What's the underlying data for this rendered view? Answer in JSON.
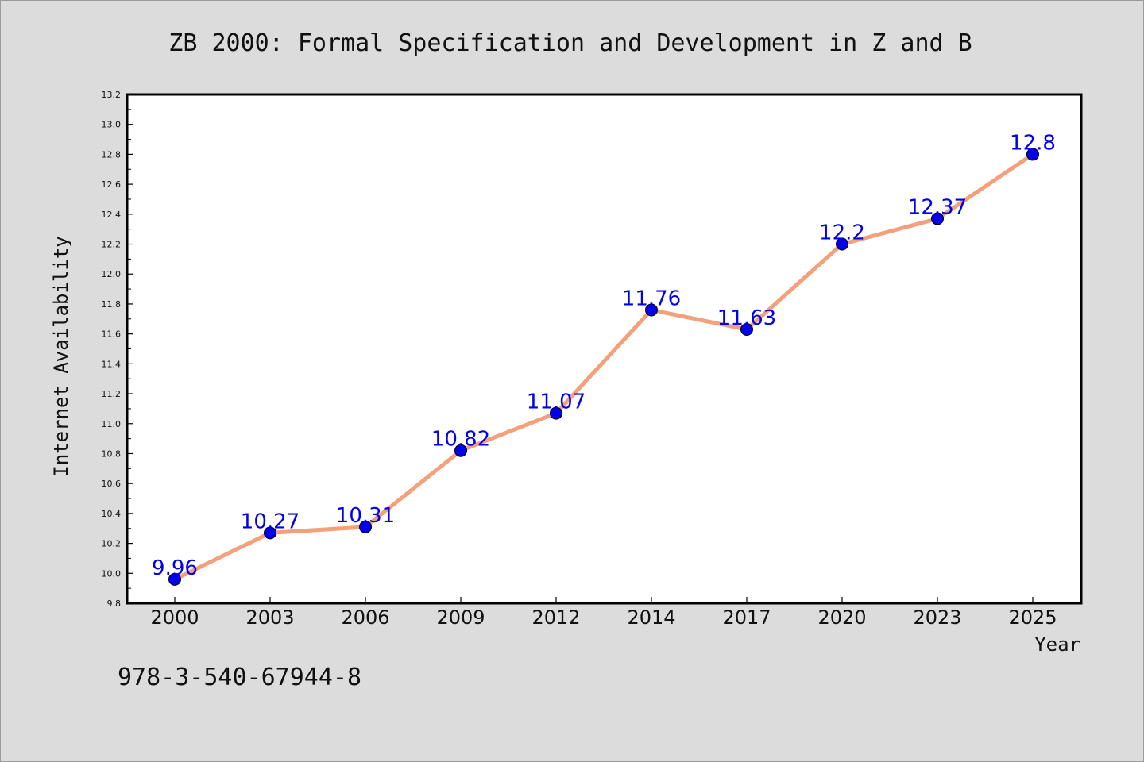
{
  "chart_data": {
    "type": "line",
    "title": "ZB 2000: Formal Specification and Development in Z and B",
    "xlabel": "Year",
    "ylabel": "Internet Availability",
    "categories": [
      "2000",
      "2003",
      "2006",
      "2009",
      "2012",
      "2014",
      "2017",
      "2020",
      "2023",
      "2025"
    ],
    "series": [
      {
        "values": [
          9.96,
          10.27,
          10.31,
          10.82,
          11.07,
          11.76,
          11.63,
          12.2,
          12.37,
          12.8
        ],
        "labels": [
          "9.96",
          "10.27",
          "10.31",
          "10.82",
          "11.07",
          "11.76",
          "11.63",
          "12.2",
          "12.37",
          "12.8"
        ],
        "line_color": "#f4a07a",
        "marker_color": "#0000ee",
        "label_color": "#0000ee"
      }
    ],
    "ylim": [
      9.8,
      13.2
    ],
    "yticks": [
      "9.8",
      "10.0",
      "10.2",
      "10.4",
      "10.6",
      "10.8",
      "11.0",
      "11.2",
      "11.4",
      "11.6",
      "11.8",
      "12.0",
      "12.2",
      "12.4",
      "12.6",
      "12.8",
      "13.0",
      "13.2"
    ],
    "grid": false,
    "legend": "none",
    "annotation": "978-3-540-67944-8"
  },
  "colors": {
    "background": "#dcdcdc",
    "plot_area": "#ffffff",
    "axis": "#000000"
  }
}
